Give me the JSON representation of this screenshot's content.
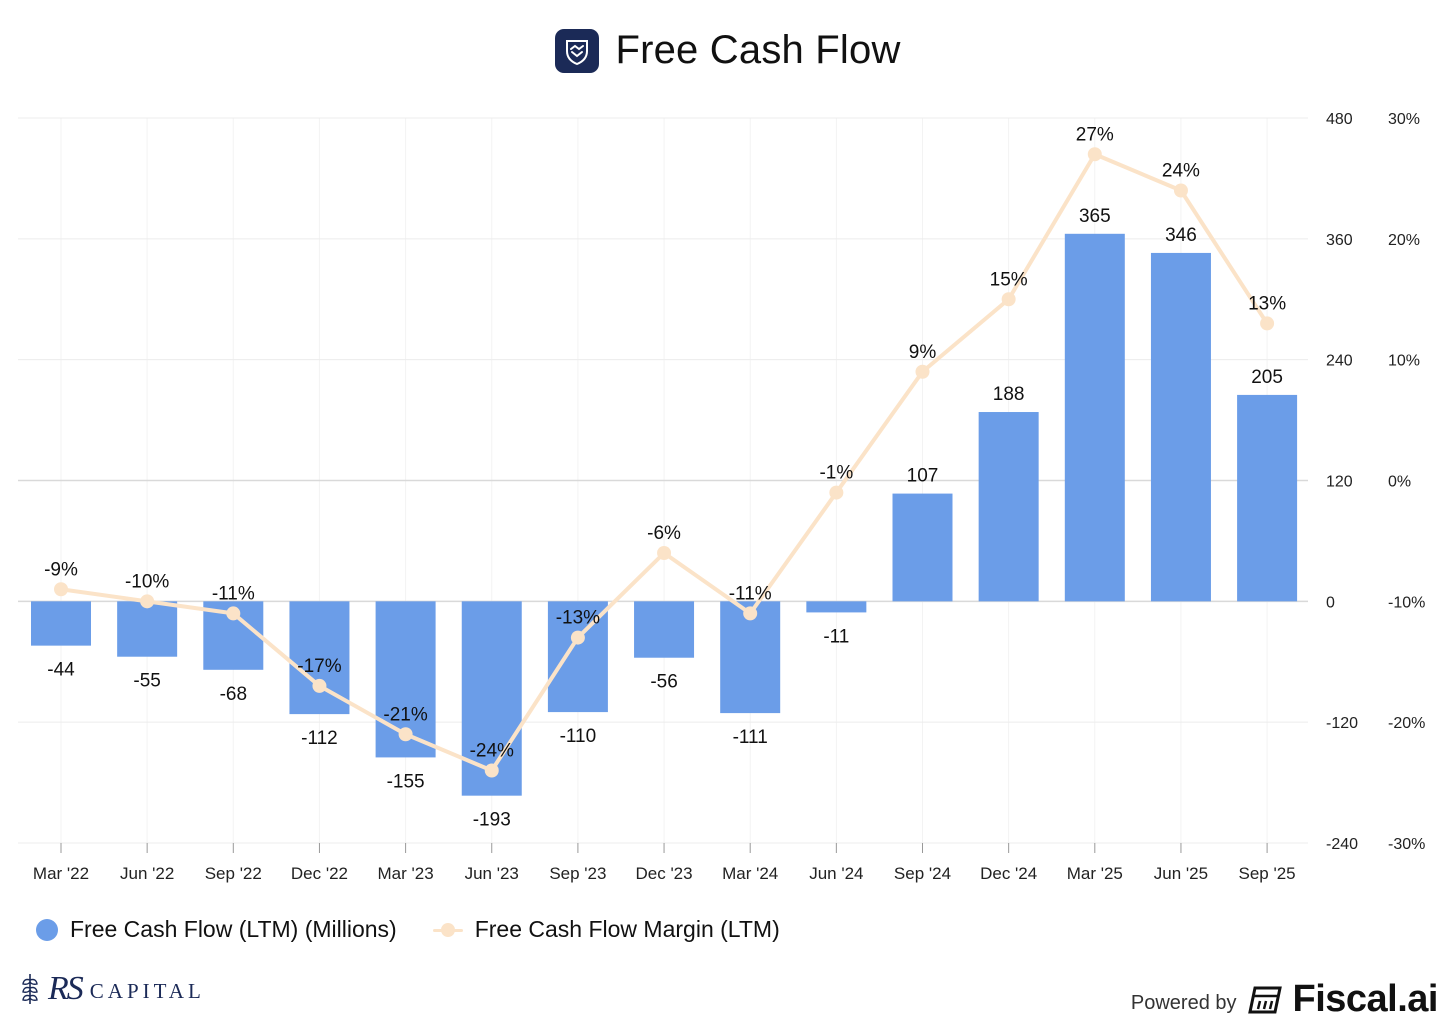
{
  "header": {
    "title": "Free Cash Flow",
    "logo_icon": "handshake-shield-icon"
  },
  "colors": {
    "bar": "#6b9de8",
    "line": "#fbe3c8",
    "grid": "#ececec",
    "zero_line": "#d9d9d9",
    "logo_bg": "#1b2a57"
  },
  "legend": {
    "bar_label": "Free Cash Flow (LTM) (Millions)",
    "line_label": "Free Cash Flow Margin (LTM)"
  },
  "footer": {
    "brand_left_mark": "RS",
    "brand_left_text": "CAPITAL",
    "powered_by": "Powered by",
    "brand_right": "Fiscal.ai"
  },
  "chart_data": {
    "type": "bar",
    "title": "Free Cash Flow",
    "categories": [
      "Mar '22",
      "Jun '22",
      "Sep '22",
      "Dec '22",
      "Mar '23",
      "Jun '23",
      "Sep '23",
      "Dec '23",
      "Mar '24",
      "Jun '24",
      "Sep '24",
      "Dec '24",
      "Mar '25",
      "Jun '25",
      "Sep '25"
    ],
    "series": [
      {
        "name": "Free Cash Flow (LTM) (Millions)",
        "type": "bar",
        "axis": "left",
        "values": [
          -44,
          -55,
          -68,
          -112,
          -155,
          -193,
          -110,
          -56,
          -111,
          -11,
          107,
          188,
          365,
          346,
          205
        ],
        "labels": [
          "-44",
          "-55",
          "-68",
          "-112",
          "-155",
          "-193",
          "-110",
          "-56",
          "-111",
          "-11",
          "107",
          "188",
          "365",
          "346",
          "205"
        ]
      },
      {
        "name": "Free Cash Flow Margin (LTM)",
        "type": "line",
        "axis": "right",
        "values": [
          -9,
          -10,
          -11,
          -17,
          -21,
          -24,
          -13,
          -6,
          -11,
          -1,
          9,
          15,
          27,
          24,
          13
        ],
        "labels": [
          "-9%",
          "-10%",
          "-11%",
          "-17%",
          "-21%",
          "-24%",
          "-13%",
          "-6%",
          "-11%",
          "-1%",
          "9%",
          "15%",
          "27%",
          "24%",
          "13%"
        ]
      }
    ],
    "y_left": {
      "range": [
        -240,
        480
      ],
      "ticks": [
        "480",
        "360",
        "240",
        "120",
        "0",
        "-120",
        "-240"
      ]
    },
    "y_right": {
      "range": [
        -30,
        30
      ],
      "ticks": [
        "30%",
        "20%",
        "10%",
        "0%",
        "-10%",
        "-20%",
        "-30%"
      ]
    },
    "grid": true,
    "legend_position": "bottom-left"
  }
}
